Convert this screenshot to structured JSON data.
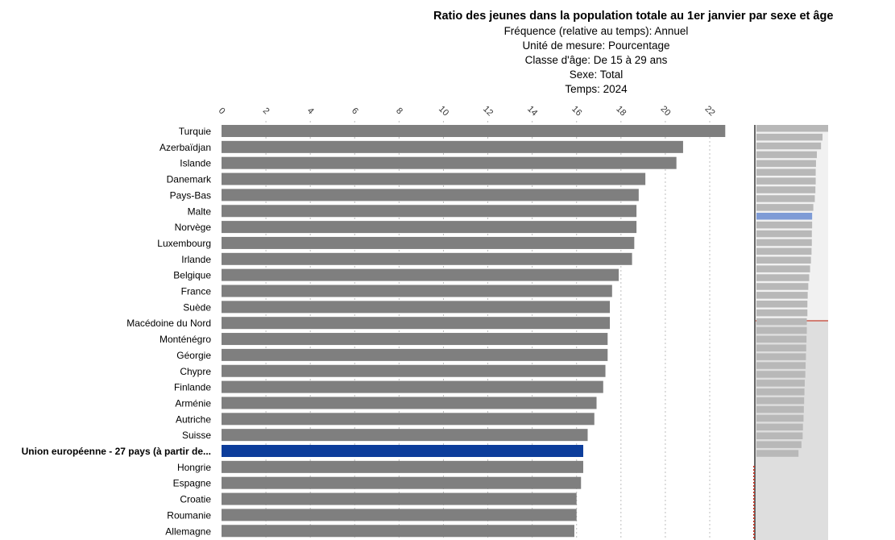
{
  "title": "Ratio des jeunes dans la population totale au 1er janvier par sexe et âge",
  "meta": [
    "Fréquence (relative au temps): Annuel",
    "Unité de mesure: Pourcentage",
    "Classe d'âge: De 15 à 29 ans",
    "Sexe: Total",
    "Temps: 2024"
  ],
  "colors": {
    "bar": "#7f7f7f",
    "highlight": "#0c3d9b",
    "grid": "#bdbdbd",
    "minimap_bar": "#b8b8b8",
    "minimap_highlight": "#7e9bd6",
    "minimap_marker": "#c0392b"
  },
  "chart_data": {
    "type": "bar",
    "orientation": "horizontal",
    "xlim": [
      0,
      23
    ],
    "ticks": [
      0,
      2,
      4,
      6,
      8,
      10,
      12,
      14,
      16,
      18,
      20,
      22
    ],
    "grid": true,
    "highlight": "Union européenne - 27 pays (à partir de...",
    "categories": [
      "Turquie",
      "Azerbaïdjan",
      "Islande",
      "Danemark",
      "Pays-Bas",
      "Malte",
      "Norvège",
      "Luxembourg",
      "Irlande",
      "Belgique",
      "France",
      "Suède",
      "Macédoine du Nord",
      "Monténégro",
      "Géorgie",
      "Chypre",
      "Finlande",
      "Arménie",
      "Autriche",
      "Suisse",
      "Union européenne - 27 pays (à partir de...",
      "Hongrie",
      "Espagne",
      "Croatie",
      "Roumanie",
      "Allemagne"
    ],
    "values": [
      22.7,
      20.8,
      20.5,
      19.1,
      18.8,
      18.7,
      18.7,
      18.6,
      18.5,
      17.9,
      17.6,
      17.5,
      17.5,
      17.4,
      17.4,
      17.3,
      17.2,
      16.9,
      16.8,
      16.5,
      16.3,
      16.3,
      16.2,
      16.0,
      16.0,
      15.9
    ]
  },
  "minimap": {
    "values": [
      24.2,
      22.3,
      21.8,
      20.4,
      20.1,
      20.0,
      20.0,
      19.9,
      19.7,
      19.2,
      18.8,
      18.8,
      18.7,
      18.7,
      18.6,
      18.4,
      18.1,
      17.8,
      17.5,
      17.3,
      17.2,
      17.2,
      17.0,
      17.0,
      16.9,
      16.8,
      16.7,
      16.6,
      16.5,
      16.3,
      16.2,
      16.1,
      16.0,
      15.9,
      15.7,
      15.6,
      15.2,
      14.2
    ],
    "highlight_index": 10
  }
}
